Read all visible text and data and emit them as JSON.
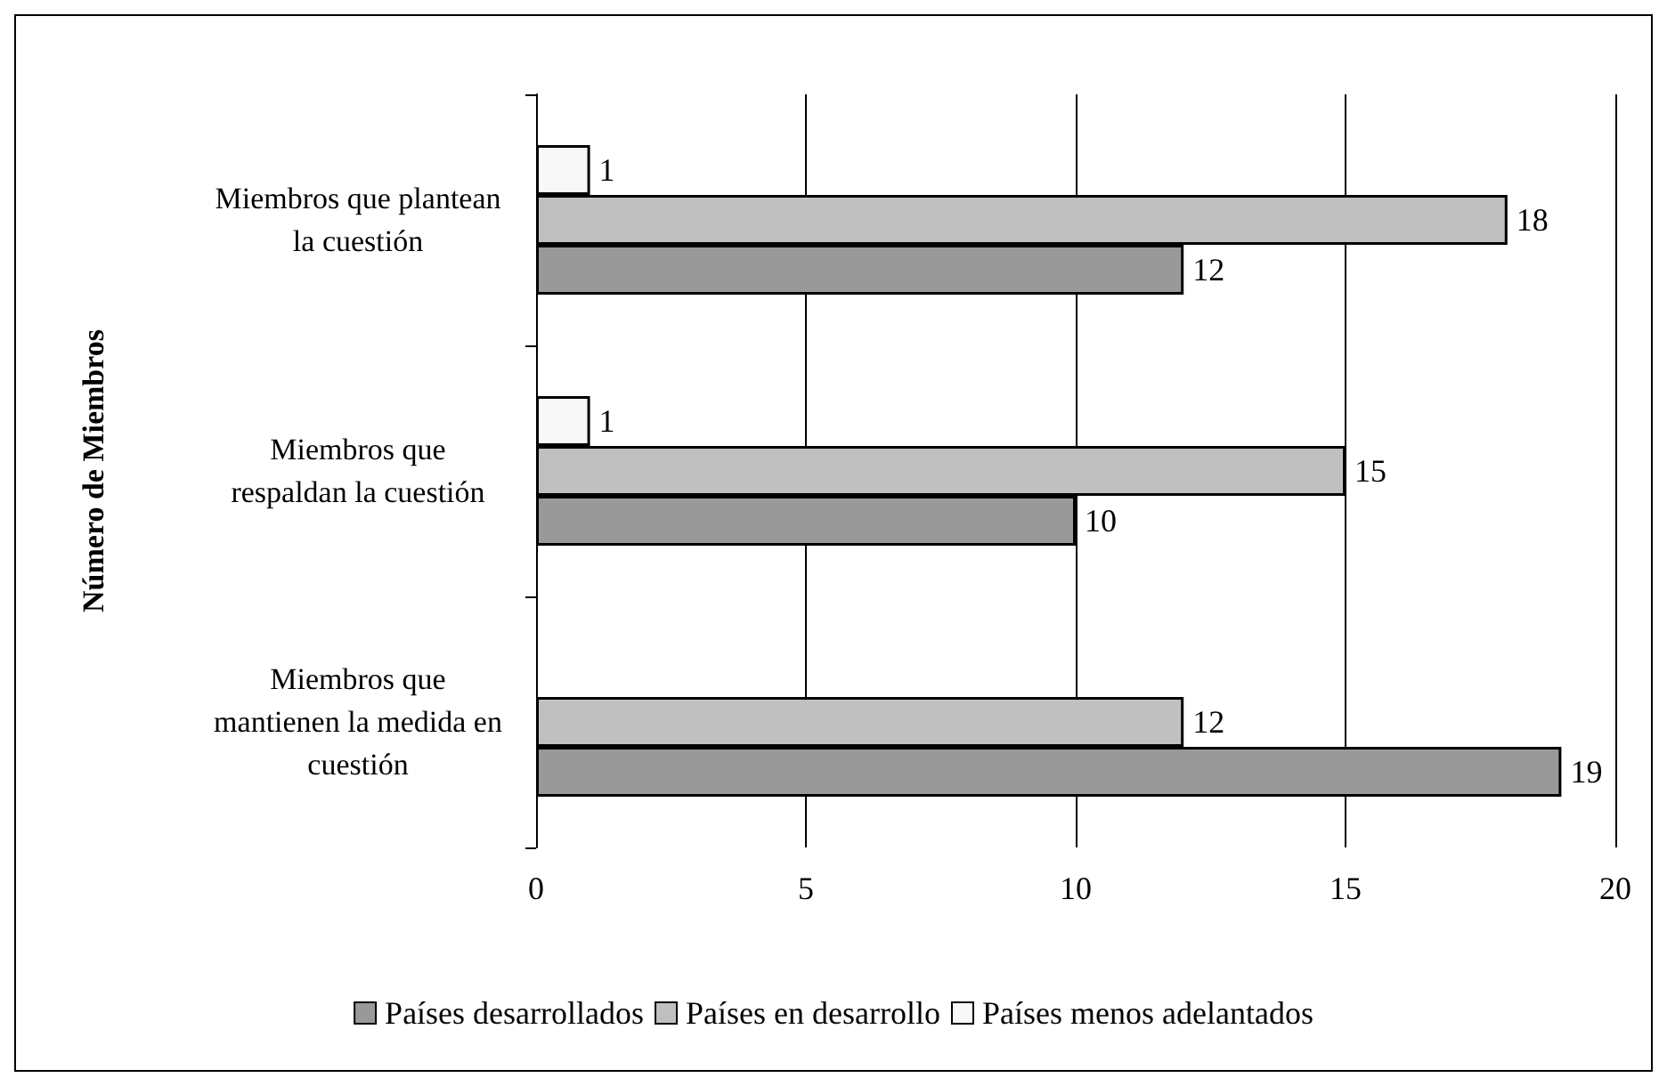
{
  "chart_data": {
    "type": "bar",
    "orientation": "horizontal",
    "ylabel": "Número de Miembros",
    "categories": [
      "Miembros que plantean\nla cuestión",
      "Miembros que\nrespaldan la cuestión",
      "Miembros que\nmantienen la medida en\ncuestión"
    ],
    "series": [
      {
        "name": "Países desarrollados",
        "color": "#999999",
        "values": [
          12,
          10,
          19
        ]
      },
      {
        "name": "Países en desarrollo",
        "color": "#c0c0c0",
        "values": [
          18,
          15,
          12
        ]
      },
      {
        "name": "Países menos adelantados",
        "color": "#f8f8f8",
        "values": [
          1,
          1,
          null
        ]
      }
    ],
    "xlim": [
      0,
      20
    ],
    "xticks": [
      0,
      5,
      10,
      15,
      20
    ],
    "grid": "x",
    "legend": "bottom",
    "data_labels": true
  }
}
